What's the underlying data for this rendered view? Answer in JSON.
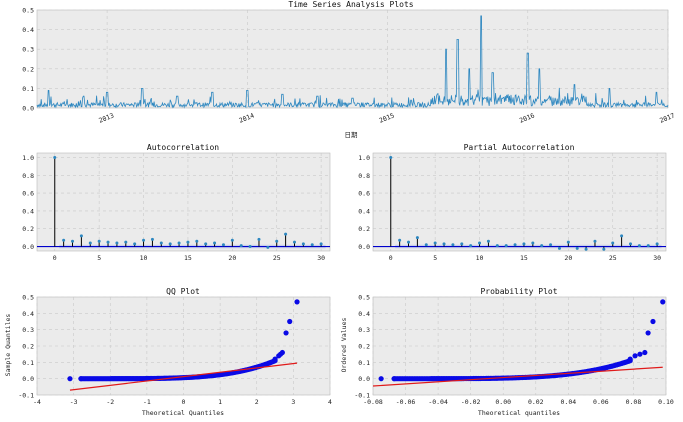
{
  "figure_title": "Time Series Analysis Plots",
  "chart_data": [
    {
      "id": "ts",
      "type": "line",
      "title": "",
      "xlabel": "日期",
      "ylabel": "",
      "x_tick_labels": [
        "2013",
        "2014",
        "2015",
        "2016",
        "2017"
      ],
      "x_range": [
        "2012-07",
        "2017-01"
      ],
      "ylim": [
        0,
        0.5
      ],
      "y_ticks": [
        0.0,
        0.1,
        0.2,
        0.3,
        0.4,
        0.5
      ],
      "grid": true,
      "color": "#2d87c0",
      "baseline_level": 0.02,
      "peaks": [
        {
          "date": "2012-08",
          "value": 0.09
        },
        {
          "date": "2012-11",
          "value": 0.06
        },
        {
          "date": "2013-01",
          "value": 0.08
        },
        {
          "date": "2013-04",
          "value": 0.1
        },
        {
          "date": "2013-07",
          "value": 0.06
        },
        {
          "date": "2013-10",
          "value": 0.08
        },
        {
          "date": "2014-01",
          "value": 0.09
        },
        {
          "date": "2014-04",
          "value": 0.07
        },
        {
          "date": "2014-07",
          "value": 0.06
        },
        {
          "date": "2014-10",
          "value": 0.05
        },
        {
          "date": "2015-03",
          "value": 0.04
        },
        {
          "date": "2015-06",
          "value": 0.3
        },
        {
          "date": "2015-07",
          "value": 0.35
        },
        {
          "date": "2015-08",
          "value": 0.2
        },
        {
          "date": "2015-09",
          "value": 0.47
        },
        {
          "date": "2015-10",
          "value": 0.18
        },
        {
          "date": "2016-01",
          "value": 0.28
        },
        {
          "date": "2016-02",
          "value": 0.2
        },
        {
          "date": "2016-05",
          "value": 0.12
        },
        {
          "date": "2016-08",
          "value": 0.1
        },
        {
          "date": "2016-12",
          "value": 0.08
        }
      ]
    },
    {
      "id": "acf",
      "type": "stem",
      "title": "Autocorrelation",
      "xlim": [
        -2,
        31
      ],
      "ylim": [
        -0.05,
        1.05
      ],
      "x_ticks": [
        0,
        5,
        10,
        15,
        20,
        25,
        30
      ],
      "y_ticks": [
        0.0,
        0.2,
        0.4,
        0.6,
        0.8,
        1.0
      ],
      "grid": true,
      "lags": [
        0,
        1,
        2,
        3,
        4,
        5,
        6,
        7,
        8,
        9,
        10,
        11,
        12,
        13,
        14,
        15,
        16,
        17,
        18,
        19,
        20,
        21,
        22,
        23,
        24,
        25,
        26,
        27,
        28,
        29,
        30
      ],
      "values": [
        1.0,
        0.07,
        0.06,
        0.12,
        0.04,
        0.06,
        0.05,
        0.04,
        0.05,
        0.03,
        0.07,
        0.08,
        0.04,
        0.03,
        0.04,
        0.05,
        0.06,
        0.03,
        0.04,
        0.02,
        0.07,
        0.01,
        0.0,
        0.08,
        -0.01,
        0.06,
        0.14,
        0.05,
        0.03,
        0.02,
        0.03
      ],
      "conf_band": 0.02
    },
    {
      "id": "pacf",
      "type": "stem",
      "title": "Partial Autocorrelation",
      "xlim": [
        -2,
        31
      ],
      "ylim": [
        -0.05,
        1.05
      ],
      "x_ticks": [
        0,
        5,
        10,
        15,
        20,
        25,
        30
      ],
      "y_ticks": [
        0.0,
        0.2,
        0.4,
        0.6,
        0.8,
        1.0
      ],
      "grid": true,
      "lags": [
        0,
        1,
        2,
        3,
        4,
        5,
        6,
        7,
        8,
        9,
        10,
        11,
        12,
        13,
        14,
        15,
        16,
        17,
        18,
        19,
        20,
        21,
        22,
        23,
        24,
        25,
        26,
        27,
        28,
        29,
        30
      ],
      "values": [
        1.0,
        0.07,
        0.05,
        0.1,
        0.02,
        0.04,
        0.03,
        0.02,
        0.03,
        0.01,
        0.04,
        0.06,
        0.01,
        0.01,
        0.02,
        0.03,
        0.04,
        0.01,
        0.02,
        -0.02,
        0.05,
        -0.02,
        -0.03,
        0.06,
        -0.03,
        0.04,
        0.12,
        0.03,
        0.01,
        0.01,
        0.03
      ],
      "conf_band": 0.02
    },
    {
      "id": "qq",
      "type": "scatter",
      "title": "QQ Plot",
      "xlabel": "Theoretical Quantiles",
      "ylabel": "Sample Quantiles",
      "xlim": [
        -4,
        4
      ],
      "ylim": [
        -0.1,
        0.5
      ],
      "x_ticks": [
        -4,
        -3,
        -2,
        -1,
        0,
        1,
        2,
        3,
        4
      ],
      "y_ticks": [
        -0.1,
        0.0,
        0.1,
        0.2,
        0.3,
        0.4,
        0.5
      ],
      "grid": true,
      "point_color": "#0a0ae6",
      "line_color": "#e01a1a",
      "fit_line": {
        "x0": -3.1,
        "y0": -0.07,
        "x1": 3.1,
        "y1": 0.095
      },
      "min_x": -3.1,
      "max_x": 3.1,
      "min_y": 0.0,
      "points_head": [
        [
          -3.1,
          0.0
        ],
        [
          -2.8,
          0.0
        ]
      ],
      "points_tail": [
        [
          2.5,
          0.12
        ],
        [
          2.6,
          0.14
        ],
        [
          2.65,
          0.15
        ],
        [
          2.7,
          0.16
        ],
        [
          2.8,
          0.28
        ],
        [
          2.9,
          0.35
        ],
        [
          3.1,
          0.47
        ]
      ]
    },
    {
      "id": "prob",
      "type": "scatter",
      "title": "Probability Plot",
      "xlabel": "Theoretical quantiles",
      "ylabel": "Ordered Values",
      "xlim": [
        -0.08,
        0.1
      ],
      "ylim": [
        -0.1,
        0.5
      ],
      "x_ticks": [
        -0.08,
        -0.06,
        -0.04,
        -0.02,
        0.0,
        0.02,
        0.04,
        0.06,
        0.08,
        0.1
      ],
      "y_ticks": [
        -0.1,
        0.0,
        0.1,
        0.2,
        0.3,
        0.4,
        0.5
      ],
      "grid": true,
      "point_color": "#0a0ae6",
      "line_color": "#e01a1a",
      "fit_line": {
        "x0": -0.08,
        "y0": -0.045,
        "x1": 0.098,
        "y1": 0.07
      },
      "min_x": -0.075,
      "max_x": 0.098,
      "min_y": 0.0,
      "points_head": [
        [
          -0.075,
          0.0
        ],
        [
          -0.067,
          0.0
        ]
      ],
      "points_tail": [
        [
          0.078,
          0.12
        ],
        [
          0.081,
          0.14
        ],
        [
          0.084,
          0.15
        ],
        [
          0.087,
          0.16
        ],
        [
          0.089,
          0.28
        ],
        [
          0.092,
          0.35
        ],
        [
          0.098,
          0.47
        ]
      ]
    }
  ]
}
